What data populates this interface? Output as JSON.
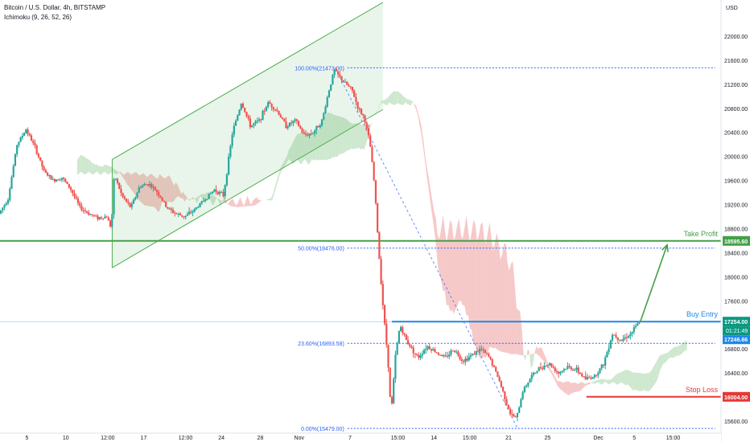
{
  "header": {
    "symbol_line": "Bitcoin / U.S. Dollar, 4h, BITSTAMP",
    "indicator_line": "Ichimoku (9, 26, 52, 26)"
  },
  "axis": {
    "currency": "USD"
  },
  "colors": {
    "bull": "#26a69a",
    "bear": "#ef5350",
    "take_profit": "#43a047",
    "buy_entry": "#1e88e5",
    "stop_loss": "#e53935",
    "fib": "#2962ff",
    "channel": "#4caf50",
    "cloud_bull": "#a5d6a7",
    "cloud_bear": "#ef9a9a"
  },
  "chart_data": {
    "type": "candlestick",
    "instrument": "Bitcoin / U.S. Dollar",
    "timeframe": "4h",
    "exchange": "BITSTAMP",
    "indicator": "Ichimoku (9, 26, 52, 26)",
    "ylim": [
      15400,
      22600
    ],
    "y_ticks": [
      15600,
      16000,
      16400,
      16800,
      17200,
      17600,
      18000,
      18400,
      18800,
      19200,
      19600,
      20000,
      20400,
      20800,
      21200,
      21600,
      22000
    ],
    "x_ticks": [
      {
        "label": "5",
        "t": 0.9
      },
      {
        "label": "10",
        "t": 2.2
      },
      {
        "label": "12:00",
        "t": 3.6
      },
      {
        "label": "17",
        "t": 4.8
      },
      {
        "label": "12:00",
        "t": 6.2
      },
      {
        "label": "24",
        "t": 7.4
      },
      {
        "label": "28",
        "t": 8.7
      },
      {
        "label": "Nov",
        "t": 10.0
      },
      {
        "label": "7",
        "t": 11.7
      },
      {
        "label": "15:00",
        "t": 13.3
      },
      {
        "label": "14",
        "t": 14.5
      },
      {
        "label": "15:00",
        "t": 15.7
      },
      {
        "label": "21",
        "t": 17.0
      },
      {
        "label": "25",
        "t": 18.3
      },
      {
        "label": "Dec",
        "t": 20.0
      },
      {
        "label": "5",
        "t": 21.2
      },
      {
        "label": "15:00",
        "t": 22.5
      }
    ],
    "key_levels": [
      {
        "name": "Take Profit",
        "price": 18595.6,
        "label": "18595.60"
      },
      {
        "name": "Buy Entry",
        "price": 17254.0,
        "label": "17254.00"
      },
      {
        "name": "Stop Loss",
        "price": 16004.0,
        "label": "16004.00"
      }
    ],
    "price_badges": {
      "current": "17246.66",
      "countdown": "01:21:49"
    },
    "fibonacci": [
      {
        "label": "100.00%(21473.00)",
        "price": 21473.0
      },
      {
        "label": "50.00%(18476.00)",
        "price": 18476.0
      },
      {
        "label": "23.60%(16893.58)",
        "price": 16893.58
      },
      {
        "label": "0.00%(15479.00)",
        "price": 15479.0
      }
    ],
    "channel": {
      "upper": [
        [
          3.75,
          19950
        ],
        [
          12.8,
          22560
        ]
      ],
      "lower": [
        [
          3.75,
          18150
        ],
        [
          12.8,
          20780
        ]
      ]
    },
    "target_arrow": {
      "from": [
        21.4,
        17250
      ],
      "to": [
        22.3,
        18530
      ]
    },
    "anchors": [
      [
        0.0,
        19050
      ],
      [
        0.3,
        19300
      ],
      [
        0.6,
        20200
      ],
      [
        0.9,
        20450
      ],
      [
        1.2,
        20150
      ],
      [
        1.5,
        19750
      ],
      [
        1.8,
        19600
      ],
      [
        2.1,
        19650
      ],
      [
        2.4,
        19450
      ],
      [
        2.7,
        19150
      ],
      [
        3.0,
        19050
      ],
      [
        3.3,
        18980
      ],
      [
        3.6,
        19000
      ],
      [
        3.75,
        18800
      ],
      [
        3.85,
        19700
      ],
      [
        4.1,
        19350
      ],
      [
        4.4,
        19150
      ],
      [
        4.7,
        19500
      ],
      [
        5.0,
        19550
      ],
      [
        5.3,
        19400
      ],
      [
        5.6,
        19150
      ],
      [
        5.9,
        19050
      ],
      [
        6.2,
        19000
      ],
      [
        6.5,
        19100
      ],
      [
        6.8,
        19250
      ],
      [
        7.2,
        19450
      ],
      [
        7.5,
        19350
      ],
      [
        7.8,
        20400
      ],
      [
        8.1,
        20900
      ],
      [
        8.4,
        20500
      ],
      [
        8.7,
        20600
      ],
      [
        9.0,
        20900
      ],
      [
        9.3,
        20750
      ],
      [
        9.6,
        20500
      ],
      [
        9.9,
        20600
      ],
      [
        10.2,
        20350
      ],
      [
        10.5,
        20400
      ],
      [
        10.8,
        20600
      ],
      [
        11.0,
        21050
      ],
      [
        11.2,
        21430
      ],
      [
        11.5,
        21250
      ],
      [
        11.8,
        21100
      ],
      [
        12.0,
        20800
      ],
      [
        12.2,
        20650
      ],
      [
        12.4,
        20200
      ],
      [
        12.55,
        19500
      ],
      [
        12.7,
        18350
      ],
      [
        12.85,
        17400
      ],
      [
        13.0,
        16600
      ],
      [
        13.1,
        15700
      ],
      [
        13.25,
        16700
      ],
      [
        13.4,
        17200
      ],
      [
        13.6,
        16950
      ],
      [
        13.8,
        16800
      ],
      [
        14.0,
        16650
      ],
      [
        14.3,
        16850
      ],
      [
        14.6,
        16750
      ],
      [
        14.9,
        16650
      ],
      [
        15.2,
        16800
      ],
      [
        15.5,
        16600
      ],
      [
        15.8,
        16700
      ],
      [
        16.1,
        16800
      ],
      [
        16.4,
        16650
      ],
      [
        16.7,
        16300
      ],
      [
        16.9,
        16000
      ],
      [
        17.1,
        15700
      ],
      [
        17.3,
        15650
      ],
      [
        17.5,
        16100
      ],
      [
        17.8,
        16350
      ],
      [
        18.1,
        16500
      ],
      [
        18.4,
        16550
      ],
      [
        18.7,
        16400
      ],
      [
        19.0,
        16500
      ],
      [
        19.3,
        16450
      ],
      [
        19.6,
        16300
      ],
      [
        19.9,
        16350
      ],
      [
        20.2,
        16550
      ],
      [
        20.5,
        17050
      ],
      [
        20.8,
        16950
      ],
      [
        21.1,
        17050
      ],
      [
        21.4,
        17246
      ]
    ]
  }
}
